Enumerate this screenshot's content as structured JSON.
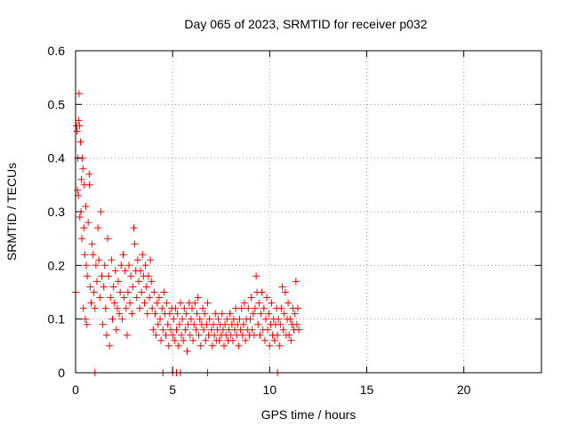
{
  "chart_data": {
    "type": "scatter",
    "title": "Day 065 of 2023, SRMTID for receiver p032",
    "xlabel": "GPS time / hours",
    "ylabel": "SRMTID / TECUs",
    "xlim": [
      0,
      24
    ],
    "ylim": [
      0,
      0.6
    ],
    "xticks": [
      0,
      5,
      10,
      15,
      20
    ],
    "xtick_labels": [
      "0",
      "5",
      "10",
      "15",
      "20"
    ],
    "yticks": [
      0,
      0.1,
      0.2,
      0.3,
      0.4,
      0.5,
      0.6
    ],
    "ytick_labels": [
      "0",
      "0.1",
      "0.2",
      "0.3",
      "0.4",
      "0.5",
      "0.6"
    ],
    "grid": true,
    "marker": "+",
    "series": [
      {
        "name": "SRMTID",
        "color": "#ff0000",
        "points": [
          [
            0.0,
            0.15
          ],
          [
            0.05,
            0.46
          ],
          [
            0.08,
            0.45
          ],
          [
            0.1,
            0.34
          ],
          [
            0.12,
            0.4
          ],
          [
            0.14,
            0.33
          ],
          [
            0.15,
            0.47
          ],
          [
            0.18,
            0.52
          ],
          [
            0.2,
            0.46
          ],
          [
            0.22,
            0.29
          ],
          [
            0.25,
            0.43
          ],
          [
            0.28,
            0.3
          ],
          [
            0.3,
            0.36
          ],
          [
            0.32,
            0.25
          ],
          [
            0.35,
            0.4
          ],
          [
            0.38,
            0.38
          ],
          [
            0.4,
            0.12
          ],
          [
            0.42,
            0.27
          ],
          [
            0.45,
            0.35
          ],
          [
            0.48,
            0.22
          ],
          [
            0.5,
            0.1
          ],
          [
            0.52,
            0.31
          ],
          [
            0.55,
            0.2
          ],
          [
            0.58,
            0.09
          ],
          [
            0.6,
            0.18
          ],
          [
            0.65,
            0.28
          ],
          [
            0.7,
            0.37
          ],
          [
            0.72,
            0.35
          ],
          [
            0.75,
            0.16
          ],
          [
            0.8,
            0.13
          ],
          [
            0.85,
            0.24
          ],
          [
            0.9,
            0.22
          ],
          [
            0.95,
            0.15
          ],
          [
            1.0,
            0.12
          ],
          [
            1.05,
            0.2
          ],
          [
            1.1,
            0.17
          ],
          [
            1.15,
            0.27
          ],
          [
            1.2,
            0.21
          ],
          [
            1.25,
            0.14
          ],
          [
            1.3,
            0.3
          ],
          [
            1.35,
            0.18
          ],
          [
            1.4,
            0.09
          ],
          [
            1.45,
            0.16
          ],
          [
            1.5,
            0.2
          ],
          [
            1.55,
            0.12
          ],
          [
            1.6,
            0.07
          ],
          [
            1.65,
            0.25
          ],
          [
            1.7,
            0.18
          ],
          [
            1.75,
            0.05
          ],
          [
            1.8,
            0.14
          ],
          [
            1.85,
            0.21
          ],
          [
            1.9,
            0.1
          ],
          [
            1.95,
            0.16
          ],
          [
            2.0,
            0.13
          ],
          [
            2.05,
            0.19
          ],
          [
            2.1,
            0.08
          ],
          [
            2.15,
            0.12
          ],
          [
            2.2,
            0.17
          ],
          [
            2.25,
            0.11
          ],
          [
            2.3,
            0.15
          ],
          [
            2.35,
            0.2
          ],
          [
            2.4,
            0.1
          ],
          [
            2.45,
            0.22
          ],
          [
            2.5,
            0.14
          ],
          [
            2.55,
            0.19
          ],
          [
            2.6,
            0.12
          ],
          [
            2.65,
            0.07
          ],
          [
            2.7,
            0.15
          ],
          [
            2.75,
            0.2
          ],
          [
            2.8,
            0.13
          ],
          [
            2.85,
            0.18
          ],
          [
            2.9,
            0.11
          ],
          [
            2.95,
            0.16
          ],
          [
            3.0,
            0.27
          ],
          [
            3.05,
            0.24
          ],
          [
            3.1,
            0.19
          ],
          [
            3.15,
            0.14
          ],
          [
            3.2,
            0.21
          ],
          [
            3.25,
            0.17
          ],
          [
            3.3,
            0.12
          ],
          [
            3.35,
            0.19
          ],
          [
            3.4,
            0.15
          ],
          [
            3.45,
            0.22
          ],
          [
            3.5,
            0.18
          ],
          [
            3.55,
            0.13
          ],
          [
            3.6,
            0.2
          ],
          [
            3.65,
            0.16
          ],
          [
            3.7,
            0.11
          ],
          [
            3.75,
            0.18
          ],
          [
            3.8,
            0.14
          ],
          [
            3.85,
            0.21
          ],
          [
            3.9,
            0.17
          ],
          [
            3.95,
            0.12
          ],
          [
            4.0,
            0.08
          ],
          [
            4.05,
            0.15
          ],
          [
            4.1,
            0.11
          ],
          [
            4.15,
            0.07
          ],
          [
            4.2,
            0.13
          ],
          [
            4.25,
            0.09
          ],
          [
            4.3,
            0.14
          ],
          [
            4.35,
            0.1
          ],
          [
            4.4,
            0.06
          ],
          [
            4.45,
            0.12
          ],
          [
            4.5,
            0.08
          ],
          [
            4.55,
            0.15
          ],
          [
            4.6,
            0.11
          ],
          [
            4.65,
            0.07
          ],
          [
            4.7,
            0.13
          ],
          [
            4.75,
            0.09
          ],
          [
            4.8,
            0.05
          ],
          [
            4.85,
            0.11
          ],
          [
            4.9,
            0.08
          ],
          [
            4.95,
            0.12
          ],
          [
            5.0,
            0.07
          ],
          [
            5.05,
            0.1
          ],
          [
            5.1,
            0.06
          ],
          [
            5.15,
            0.12
          ],
          [
            5.2,
            0.08
          ],
          [
            5.25,
            0.11
          ],
          [
            5.3,
            0.05
          ],
          [
            5.35,
            0.09
          ],
          [
            5.4,
            0.13
          ],
          [
            5.45,
            0.07
          ],
          [
            5.5,
            0.1
          ],
          [
            5.55,
            0.06
          ],
          [
            5.6,
            0.12
          ],
          [
            5.65,
            0.08
          ],
          [
            5.7,
            0.11
          ],
          [
            5.75,
            0.04
          ],
          [
            5.8,
            0.09
          ],
          [
            5.85,
            0.13
          ],
          [
            5.9,
            0.07
          ],
          [
            5.95,
            0.1
          ],
          [
            6.0,
            0.12
          ],
          [
            6.05,
            0.06
          ],
          [
            6.1,
            0.09
          ],
          [
            6.15,
            0.13
          ],
          [
            6.2,
            0.08
          ],
          [
            6.25,
            0.11
          ],
          [
            6.3,
            0.14
          ],
          [
            6.35,
            0.07
          ],
          [
            6.4,
            0.1
          ],
          [
            6.45,
            0.05
          ],
          [
            6.5,
            0.09
          ],
          [
            6.55,
            0.12
          ],
          [
            6.6,
            0.08
          ],
          [
            6.65,
            0.11
          ],
          [
            6.7,
            0.06
          ],
          [
            6.75,
            0.09
          ],
          [
            6.8,
            0.13
          ],
          [
            6.85,
            0.07
          ],
          [
            6.9,
            0.1
          ],
          [
            7.0,
            0.08
          ],
          [
            7.05,
            0.05
          ],
          [
            7.1,
            0.09
          ],
          [
            7.15,
            0.07
          ],
          [
            7.2,
            0.11
          ],
          [
            7.25,
            0.06
          ],
          [
            7.3,
            0.08
          ],
          [
            7.35,
            0.1
          ],
          [
            7.4,
            0.06
          ],
          [
            7.45,
            0.09
          ],
          [
            7.5,
            0.07
          ],
          [
            7.55,
            0.11
          ],
          [
            7.6,
            0.08
          ],
          [
            7.65,
            0.05
          ],
          [
            7.7,
            0.09
          ],
          [
            7.75,
            0.07
          ],
          [
            7.8,
            0.1
          ],
          [
            7.85,
            0.06
          ],
          [
            7.9,
            0.08
          ],
          [
            7.95,
            0.11
          ],
          [
            8.0,
            0.07
          ],
          [
            8.05,
            0.09
          ],
          [
            8.1,
            0.06
          ],
          [
            8.15,
            0.1
          ],
          [
            8.2,
            0.08
          ],
          [
            8.25,
            0.12
          ],
          [
            8.3,
            0.07
          ],
          [
            8.35,
            0.09
          ],
          [
            8.4,
            0.05
          ],
          [
            8.45,
            0.1
          ],
          [
            8.5,
            0.08
          ],
          [
            8.55,
            0.12
          ],
          [
            8.6,
            0.07
          ],
          [
            8.65,
            0.09
          ],
          [
            8.7,
            0.13
          ],
          [
            8.75,
            0.06
          ],
          [
            8.8,
            0.1
          ],
          [
            8.85,
            0.08
          ],
          [
            8.9,
            0.12
          ],
          [
            8.95,
            0.07
          ],
          [
            9.0,
            0.1
          ],
          [
            9.05,
            0.14
          ],
          [
            9.1,
            0.08
          ],
          [
            9.15,
            0.11
          ],
          [
            9.2,
            0.07
          ],
          [
            9.25,
            0.12
          ],
          [
            9.3,
            0.18
          ],
          [
            9.35,
            0.15
          ],
          [
            9.4,
            0.09
          ],
          [
            9.45,
            0.13
          ],
          [
            9.5,
            0.07
          ],
          [
            9.55,
            0.11
          ],
          [
            9.6,
            0.15
          ],
          [
            9.65,
            0.08
          ],
          [
            9.7,
            0.12
          ],
          [
            9.75,
            0.06
          ],
          [
            9.8,
            0.1
          ],
          [
            9.85,
            0.14
          ],
          [
            9.9,
            0.08
          ],
          [
            9.95,
            0.11
          ],
          [
            10.0,
            0.05
          ],
          [
            10.05,
            0.09
          ],
          [
            10.1,
            0.13
          ],
          [
            10.15,
            0.07
          ],
          [
            10.2,
            0.1
          ],
          [
            10.25,
            0.06
          ],
          [
            10.3,
            0.09
          ],
          [
            10.35,
            0.12
          ],
          [
            10.4,
            0.07
          ],
          [
            10.45,
            0.1
          ],
          [
            10.5,
            0.05
          ],
          [
            10.55,
            0.09
          ],
          [
            10.6,
            0.12
          ],
          [
            10.65,
            0.16
          ],
          [
            10.7,
            0.08
          ],
          [
            10.75,
            0.11
          ],
          [
            10.8,
            0.15
          ],
          [
            10.85,
            0.07
          ],
          [
            10.9,
            0.1
          ],
          [
            10.95,
            0.13
          ],
          [
            11.0,
            0.07
          ],
          [
            11.05,
            0.1
          ],
          [
            11.1,
            0.06
          ],
          [
            11.15,
            0.09
          ],
          [
            11.2,
            0.12
          ],
          [
            11.25,
            0.08
          ],
          [
            11.3,
            0.11
          ],
          [
            11.35,
            0.17
          ],
          [
            11.4,
            0.09
          ],
          [
            11.45,
            0.12
          ],
          [
            11.5,
            0.08
          ],
          [
            1.0,
            0.0
          ],
          [
            4.5,
            0.0
          ],
          [
            5.0,
            0.0
          ],
          [
            5.2,
            0.0
          ],
          [
            5.4,
            0.0
          ],
          [
            6.8,
            0.0
          ],
          [
            10.4,
            0.0
          ]
        ]
      }
    ]
  }
}
